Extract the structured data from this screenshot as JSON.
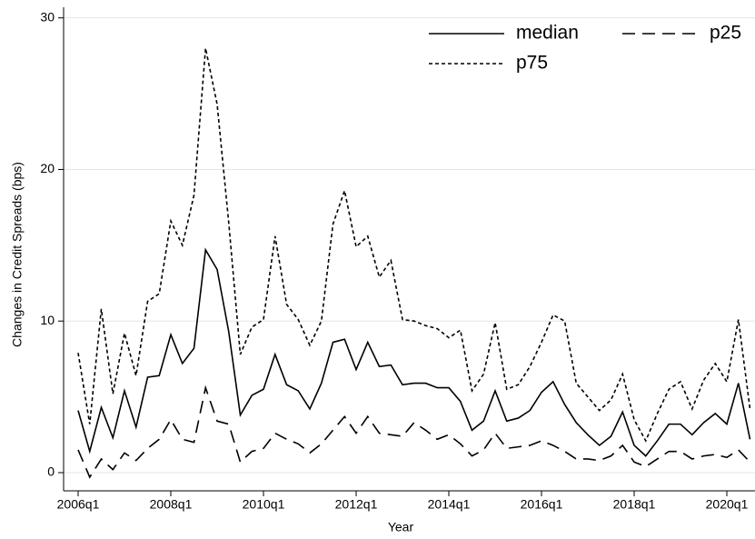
{
  "chart_data": {
    "type": "line",
    "x_label": "Year",
    "y_label": "Changes in Credit Spreads (bps)",
    "categories": [
      "2006q1",
      null,
      null,
      null,
      null,
      null,
      null,
      null,
      "2008q1",
      null,
      null,
      null,
      null,
      null,
      null,
      null,
      "2010q1",
      null,
      null,
      null,
      null,
      null,
      null,
      null,
      "2012q1",
      null,
      null,
      null,
      null,
      null,
      null,
      null,
      "2014q1",
      null,
      null,
      null,
      null,
      null,
      null,
      null,
      "2016q1",
      null,
      null,
      null,
      null,
      null,
      null,
      null,
      "2018q1",
      null,
      null,
      null,
      null,
      null,
      null,
      null,
      "2020q1",
      null,
      null
    ],
    "series": [
      {
        "name": "median",
        "color": "#000000",
        "dash": "solid",
        "values": [
          4.1,
          1.4,
          4.3,
          2.3,
          5.4,
          3.0,
          6.3,
          6.4,
          9.1,
          7.2,
          8.2,
          14.7,
          13.4,
          9.3,
          3.8,
          5.1,
          5.5,
          7.8,
          5.8,
          5.4,
          4.2,
          5.9,
          8.6,
          8.8,
          6.8,
          8.6,
          7.0,
          7.1,
          5.8,
          5.9,
          5.9,
          5.6,
          5.6,
          4.7,
          2.8,
          3.4,
          5.4,
          3.4,
          3.6,
          4.1,
          5.3,
          6.0,
          4.5,
          3.3,
          2.5,
          1.8,
          2.4,
          4.0,
          1.8,
          1.1,
          2.1,
          3.2,
          3.2,
          2.5,
          3.3,
          3.9,
          3.2,
          5.9,
          2.2
        ]
      },
      {
        "name": "p25",
        "color": "#000000",
        "dash": "long-dash",
        "values": [
          1.5,
          -0.3,
          0.9,
          0.2,
          1.3,
          0.8,
          1.6,
          2.2,
          3.5,
          2.2,
          2.0,
          5.6,
          3.4,
          3.2,
          0.7,
          1.4,
          1.6,
          2.6,
          2.2,
          1.9,
          1.3,
          1.9,
          2.8,
          3.7,
          2.6,
          3.7,
          2.6,
          2.5,
          2.4,
          3.3,
          2.8,
          2.2,
          2.5,
          1.9,
          1.1,
          1.5,
          2.6,
          1.6,
          1.7,
          1.8,
          2.1,
          1.8,
          1.4,
          0.9,
          0.9,
          0.8,
          1.1,
          1.8,
          0.7,
          0.4,
          0.9,
          1.4,
          1.4,
          0.9,
          1.1,
          1.2,
          1.0,
          1.5,
          0.7
        ]
      },
      {
        "name": "p75",
        "color": "#000000",
        "dash": "short-dash",
        "values": [
          7.9,
          3.2,
          10.8,
          5.2,
          9.2,
          6.4,
          11.3,
          11.8,
          16.6,
          15.0,
          18.3,
          28.0,
          24.3,
          16.5,
          7.8,
          9.6,
          10.1,
          15.6,
          11.1,
          10.1,
          8.4,
          10.0,
          16.4,
          18.6,
          14.9,
          15.6,
          12.9,
          14.0,
          10.1,
          10.0,
          9.7,
          9.5,
          8.9,
          9.4,
          5.4,
          6.5,
          9.9,
          5.5,
          5.8,
          7.0,
          8.6,
          10.4,
          10.0,
          5.9,
          5.0,
          4.1,
          4.8,
          6.5,
          3.5,
          2.1,
          3.9,
          5.5,
          6.0,
          4.2,
          6.1,
          7.2,
          6.0,
          10.1,
          4.2
        ]
      }
    ],
    "ylim": [
      -1.2,
      30.7
    ],
    "yticks": [
      0,
      10,
      20,
      30
    ],
    "grid": true,
    "legend": "top-right"
  }
}
